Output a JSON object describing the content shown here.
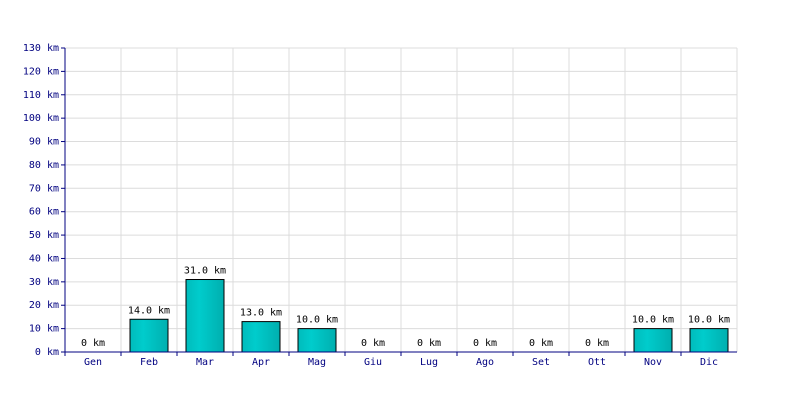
{
  "chart_data": {
    "type": "bar",
    "categories": [
      "Gen",
      "Feb",
      "Mar",
      "Apr",
      "Mag",
      "Giu",
      "Lug",
      "Ago",
      "Set",
      "Ott",
      "Nov",
      "Dic"
    ],
    "values": [
      0,
      14,
      31,
      13,
      10,
      0,
      0,
      0,
      0,
      0,
      10,
      10
    ],
    "value_labels": [
      "0 km",
      "14.0 km",
      "31.0 km",
      "13.0 km",
      "10.0 km",
      "0 km",
      "0 km",
      "0 km",
      "0 km",
      "0 km",
      "10.0 km",
      "10.0 km"
    ],
    "color": "#00cccc",
    "ylim": [
      0,
      130
    ],
    "yticks": [
      {
        "value": 0,
        "label": "0 km"
      },
      {
        "value": 10,
        "label": "10 km"
      },
      {
        "value": 20,
        "label": "20 km"
      },
      {
        "value": 30,
        "label": "30 km"
      },
      {
        "value": 40,
        "label": "40 km"
      },
      {
        "value": 50,
        "label": "50 km"
      },
      {
        "value": 60,
        "label": "60 km"
      },
      {
        "value": 70,
        "label": "70 km"
      },
      {
        "value": 80,
        "label": "80 km"
      },
      {
        "value": 90,
        "label": "90 km"
      },
      {
        "value": 100,
        "label": "100 km"
      },
      {
        "value": 110,
        "label": "110 km"
      },
      {
        "value": 120,
        "label": "120 km"
      },
      {
        "value": 130,
        "label": "130 km"
      }
    ],
    "grid": true
  }
}
